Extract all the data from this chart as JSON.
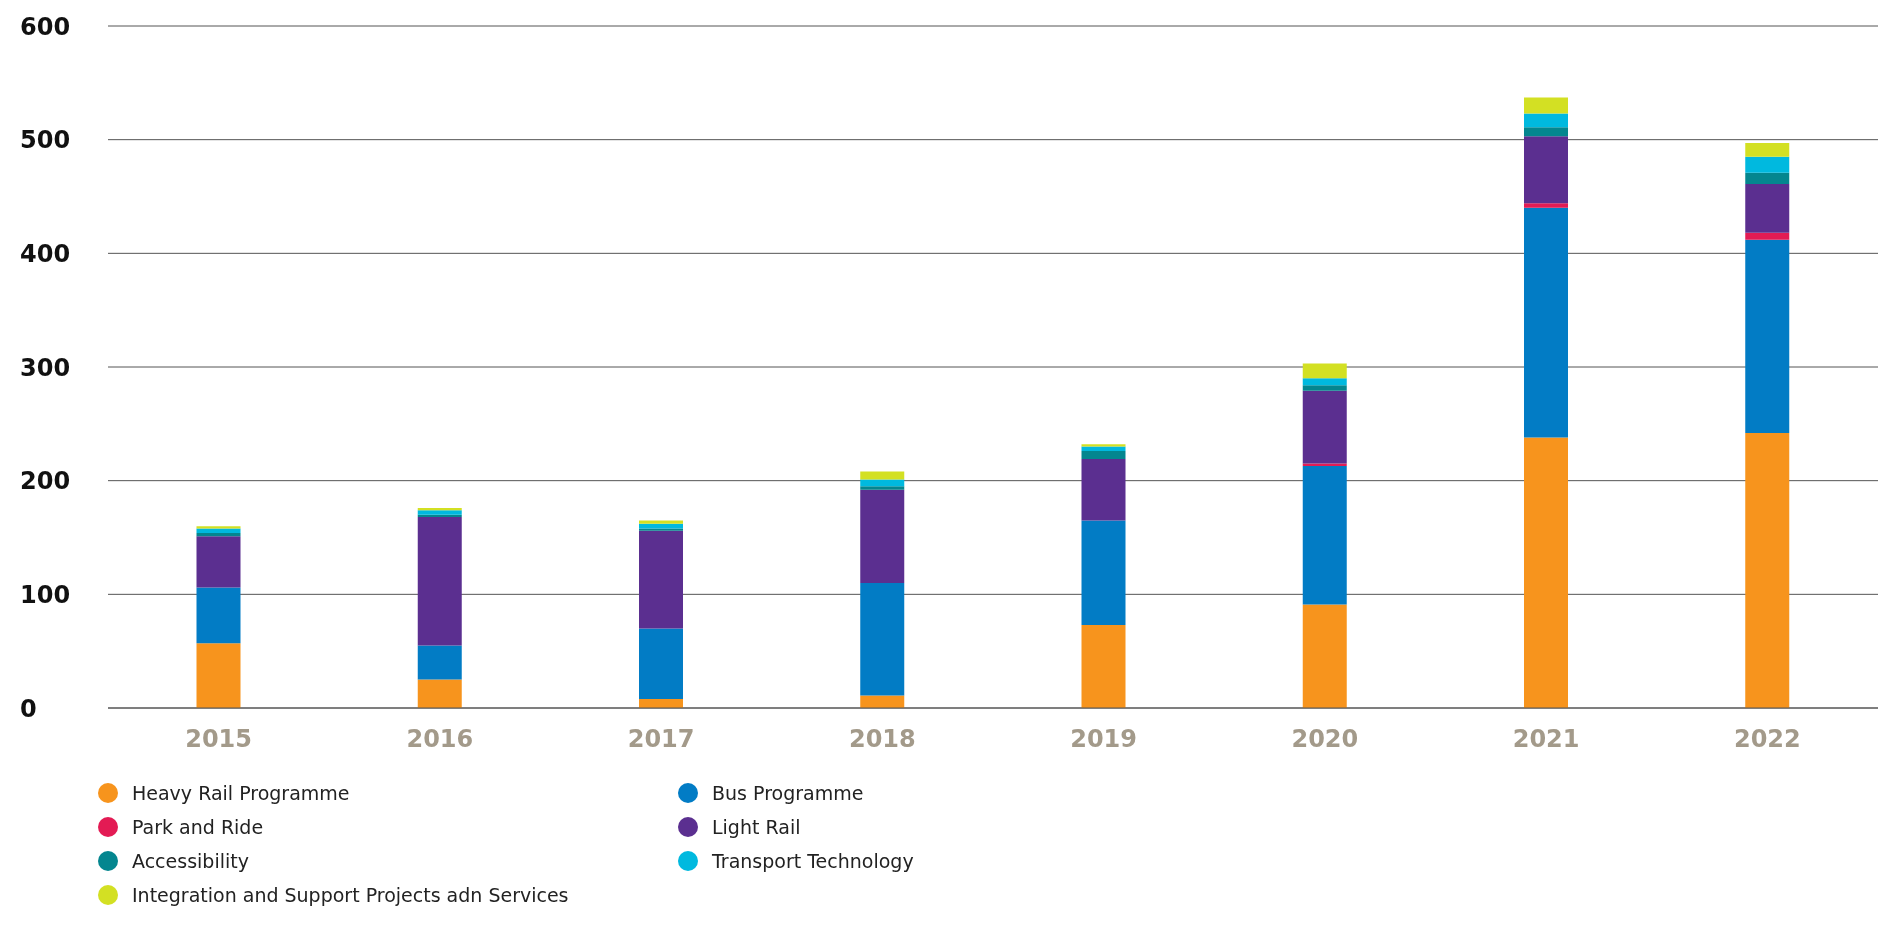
{
  "chart_data": {
    "type": "bar",
    "stacked": true,
    "categories": [
      "2015",
      "2016",
      "2017",
      "2018",
      "2019",
      "2020",
      "2021",
      "2022"
    ],
    "series": [
      {
        "name": "Heavy Rail Programme",
        "color": "#f7941d",
        "values": [
          57,
          25,
          8,
          11,
          73,
          91,
          238,
          242
        ]
      },
      {
        "name": "Bus Programme",
        "color": "#027cc5",
        "values": [
          49,
          30,
          62,
          99,
          92,
          122,
          202,
          170
        ]
      },
      {
        "name": "Park and Ride",
        "color": "#e31b54",
        "values": [
          0,
          0,
          0,
          0,
          0,
          2,
          4,
          6
        ]
      },
      {
        "name": "Light Rail",
        "color": "#5b2f90",
        "values": [
          45,
          113,
          86,
          82,
          54,
          64,
          59,
          43
        ]
      },
      {
        "name": "Accessibility",
        "color": "#04868f",
        "values": [
          3,
          2,
          2,
          3,
          7,
          5,
          8,
          10
        ]
      },
      {
        "name": "Transport Technology",
        "color": "#00b9df",
        "values": [
          4,
          4,
          4,
          6,
          4,
          6,
          12,
          14
        ]
      },
      {
        "name": "Integration and Support Projects adn Services",
        "color": "#d3e023",
        "values": [
          2,
          2,
          3,
          7,
          2,
          13,
          14,
          12
        ]
      }
    ],
    "ylim": [
      0,
      600
    ],
    "yticks": [
      0,
      100,
      200,
      300,
      400,
      500,
      600
    ],
    "grid": "y",
    "legend": "bottom"
  }
}
